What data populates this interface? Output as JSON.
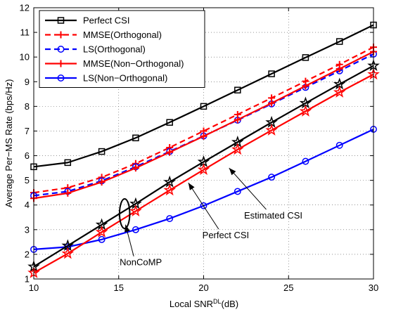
{
  "chart_data": {
    "type": "line",
    "xlabel_main": "Local SNR",
    "xlabel_sup": "DL",
    "xlabel_unit": "(dB)",
    "ylabel": "Average Per−MS Rate (bps/Hz)",
    "xlim": [
      10,
      30
    ],
    "ylim": [
      1,
      12
    ],
    "xticks": [
      10,
      15,
      20,
      25,
      30
    ],
    "yticks": [
      1,
      2,
      3,
      4,
      5,
      6,
      7,
      8,
      9,
      10,
      11,
      12
    ],
    "grid": true,
    "legend_position": "top-left",
    "x": [
      10,
      12,
      14,
      16,
      18,
      20,
      22,
      24,
      26,
      28,
      30
    ],
    "series": [
      {
        "name": "Perfect CSI",
        "color": "#000000",
        "dash": "solid",
        "marker": "square",
        "values": [
          5.55,
          5.72,
          6.17,
          6.72,
          7.35,
          8.0,
          8.66,
          9.32,
          9.98,
          10.63,
          11.3
        ]
      },
      {
        "name": "MMSE(Orthogonal)",
        "color": "#ff0000",
        "dash": "dashed",
        "marker": "plus",
        "values": [
          4.5,
          4.7,
          5.12,
          5.68,
          6.33,
          7.0,
          7.67,
          8.34,
          9.02,
          9.7,
          10.4
        ]
      },
      {
        "name": "LS(Orthogonal)",
        "color": "#0000ff",
        "dash": "dashed",
        "marker": "circle",
        "values": [
          4.38,
          4.55,
          4.98,
          5.55,
          6.17,
          6.8,
          7.44,
          8.1,
          8.77,
          9.44,
          10.12
        ]
      },
      {
        "name": "MMSE(Non−Orthogonal)",
        "color": "#ff0000",
        "dash": "solid",
        "marker": "plus",
        "values": [
          4.27,
          4.48,
          4.93,
          5.5,
          6.14,
          6.79,
          7.46,
          8.13,
          8.83,
          9.52,
          10.22
        ]
      },
      {
        "name": "LS(Non−Orthogonal)",
        "color": "#0000ff",
        "dash": "solid",
        "marker": "circle",
        "values": [
          2.2,
          2.3,
          2.6,
          3.0,
          3.45,
          3.97,
          4.55,
          5.13,
          5.77,
          6.42,
          7.07
        ]
      },
      {
        "name": "",
        "color": "#000000",
        "dash": "solid",
        "marker": "star",
        "values": [
          1.5,
          2.35,
          3.2,
          4.05,
          4.93,
          5.75,
          6.55,
          7.35,
          8.13,
          8.9,
          9.65
        ]
      },
      {
        "name": "",
        "color": "#ff0000",
        "dash": "solid",
        "marker": "star",
        "values": [
          1.25,
          2.03,
          2.9,
          3.75,
          4.6,
          5.43,
          6.25,
          7.03,
          7.8,
          8.57,
          9.3
        ]
      }
    ],
    "annotations": [
      {
        "text": "Perfect CSI",
        "label_x": 21.3,
        "label_y": 2.65,
        "arrow_x": 19.1,
        "arrow_y": 4.9
      },
      {
        "text": "Estimated CSI",
        "label_x": 24.1,
        "label_y": 3.45,
        "arrow_x": 21.5,
        "arrow_y": 5.5
      },
      {
        "text": "NonCoMP",
        "label_x": 16.3,
        "label_y": 1.55,
        "arrow_x": 15.4,
        "arrow_y": 3.2
      }
    ],
    "ellipse": {
      "cx": 15.35,
      "cy": 3.65,
      "rx": 0.3,
      "ry": 0.6
    }
  }
}
